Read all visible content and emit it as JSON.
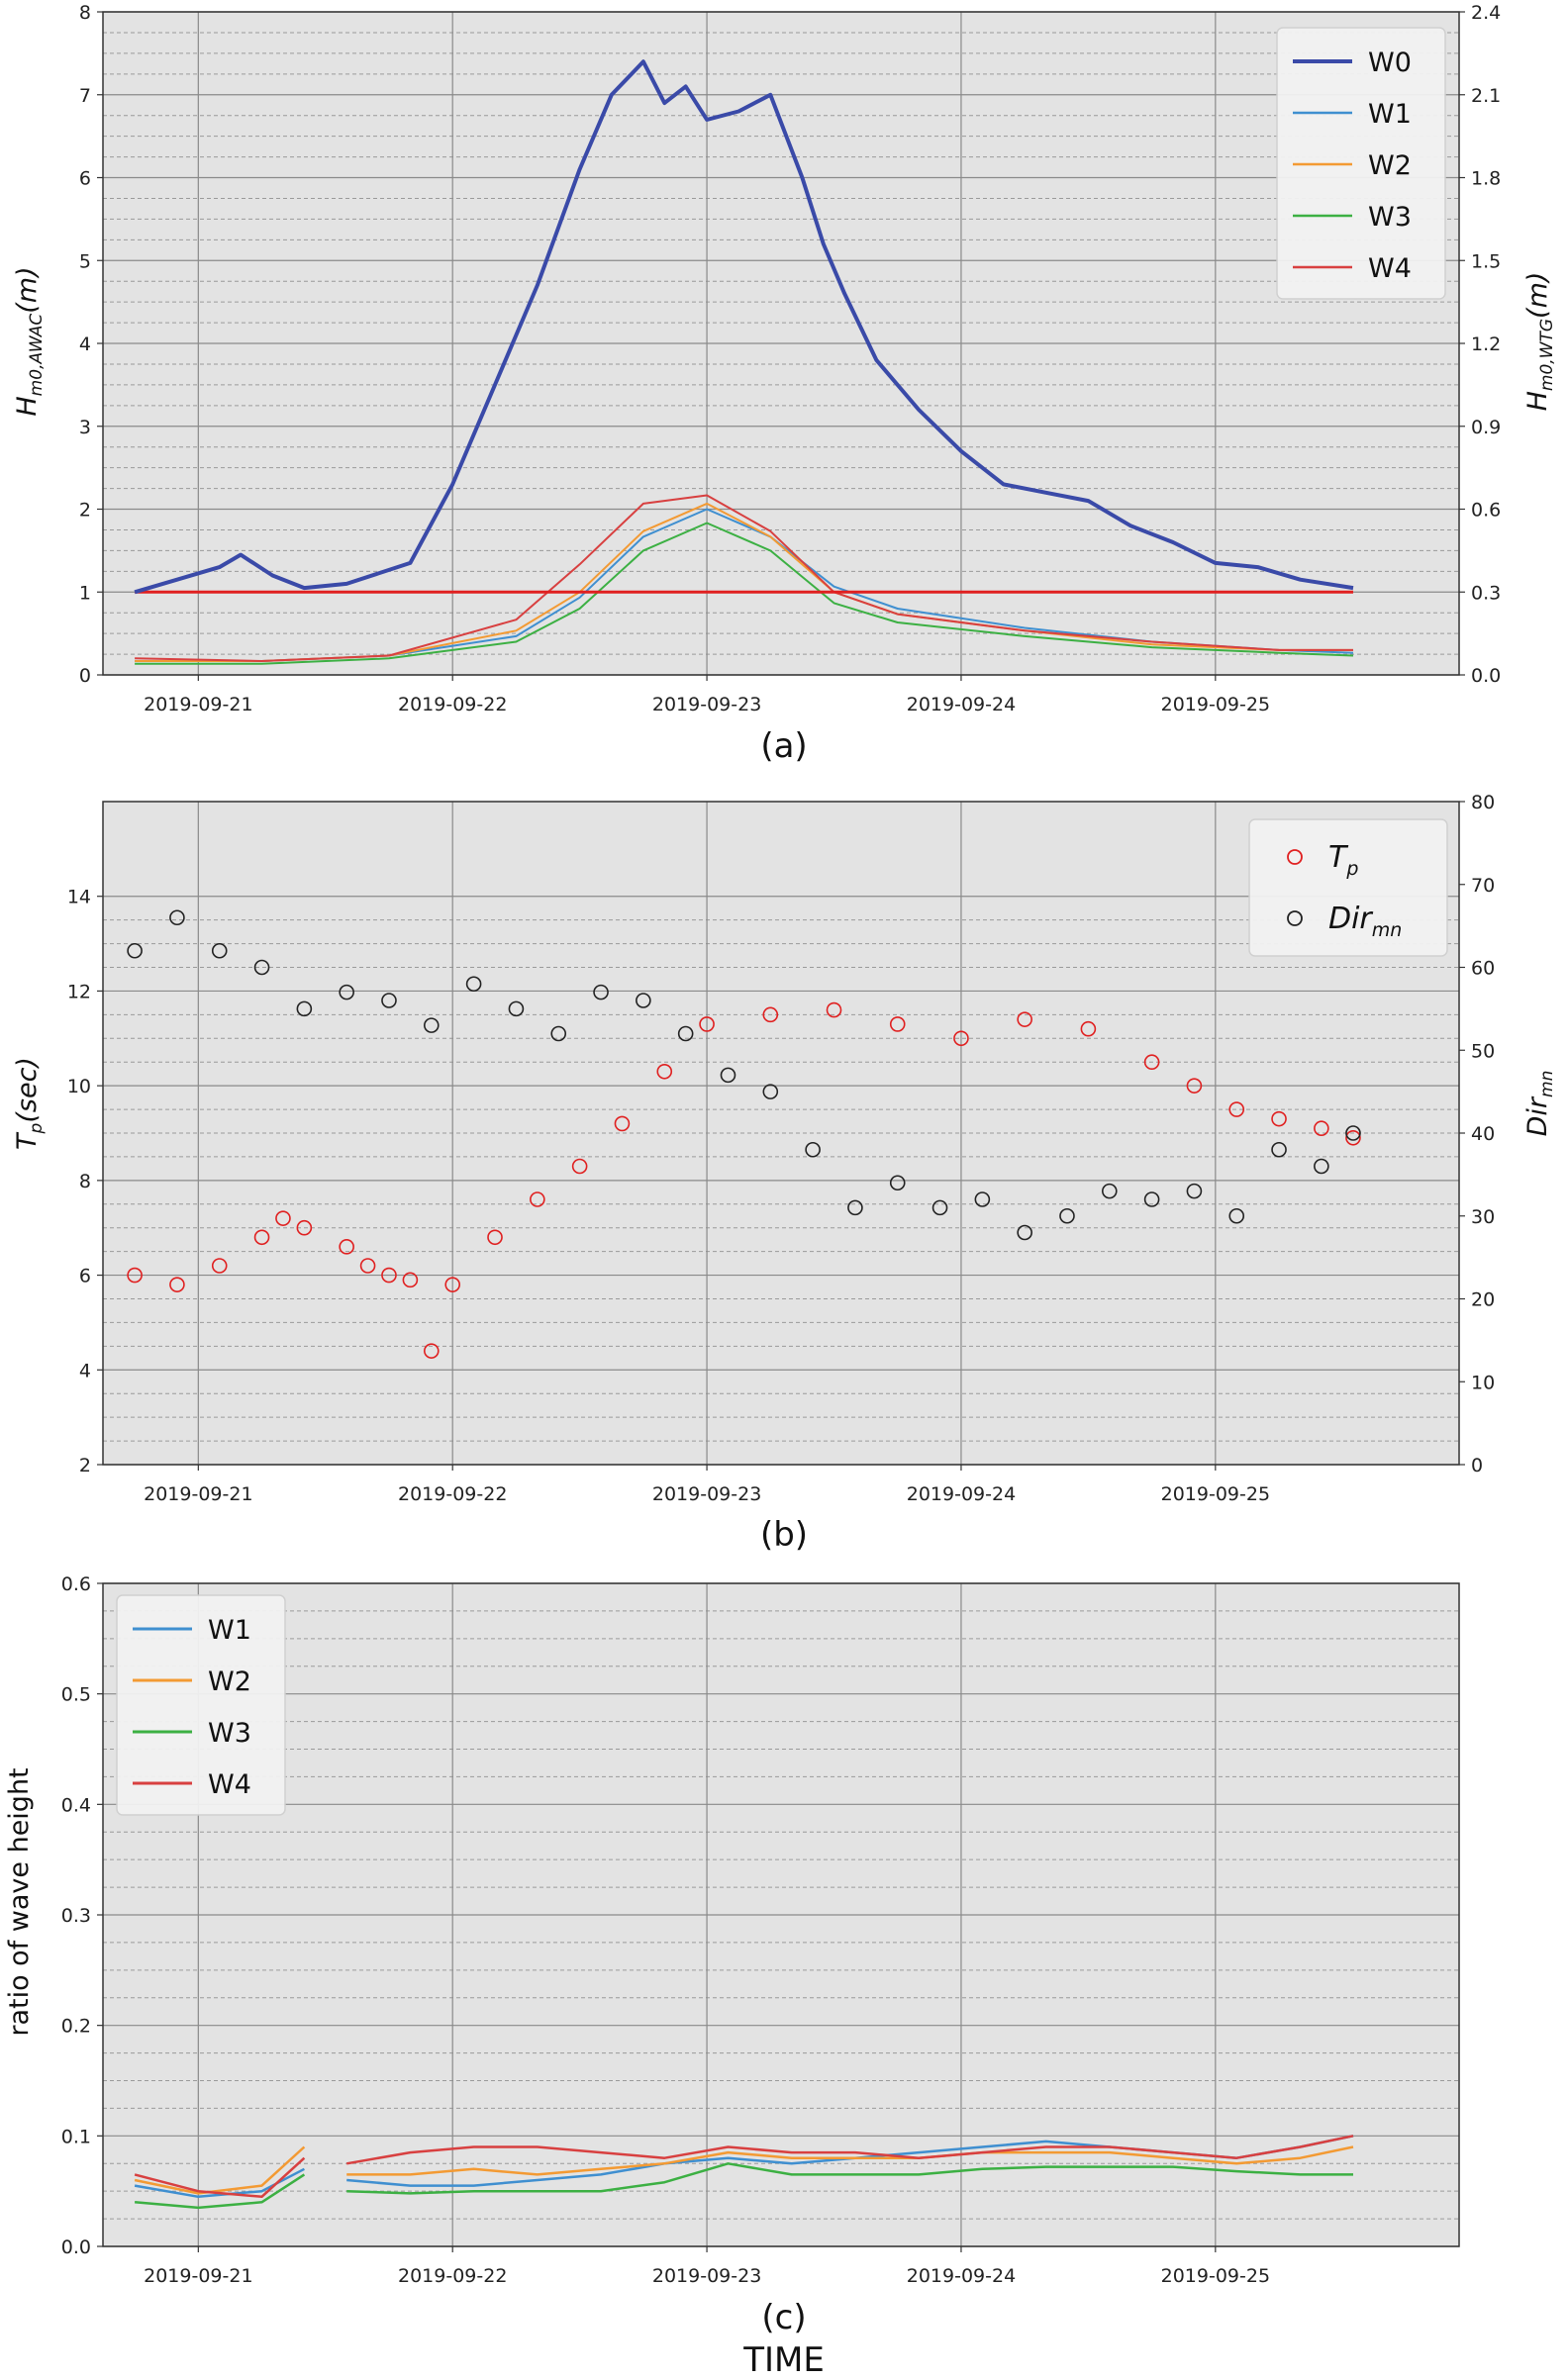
{
  "chart_data": [
    {
      "panel": "(a)",
      "type": "line",
      "caption": "(a)",
      "ylabel_left": "H_m0,AWAC(m)",
      "ylabel_right": "H_m0,WTG(m)",
      "ylim_left": [
        0,
        8
      ],
      "ylim_right": [
        0,
        2.4
      ],
      "yticks_left": [
        "0",
        "1",
        "2",
        "3",
        "4",
        "5",
        "6",
        "7",
        "8"
      ],
      "yticks_right": [
        "0.0",
        "0.3",
        "0.6",
        "0.9",
        "1.2",
        "1.5",
        "1.8",
        "2.1",
        "2.4"
      ],
      "xlim": [
        "2019-09-20 15:00",
        "2019-09-25 23:00"
      ],
      "xticks": [
        "2019-09-21",
        "2019-09-22",
        "2019-09-23",
        "2019-09-24",
        "2019-09-25"
      ],
      "grid": true,
      "legend_position": "top-right",
      "reference_line": {
        "y": 1.0,
        "color": "#e02020"
      },
      "series": [
        {
          "name": "W0",
          "axis": "left",
          "color": "#3a4aa8",
          "width": 4,
          "x": [
            "2019-09-20 18:00",
            "2019-09-20 22:00",
            "2019-09-21 02:00",
            "2019-09-21 04:00",
            "2019-09-21 07:00",
            "2019-09-21 10:00",
            "2019-09-21 14:00",
            "2019-09-21 20:00",
            "2019-09-22 00:00",
            "2019-09-22 04:00",
            "2019-09-22 08:00",
            "2019-09-22 12:00",
            "2019-09-22 15:00",
            "2019-09-22 18:00",
            "2019-09-22 20:00",
            "2019-09-22 22:00",
            "2019-09-23 00:00",
            "2019-09-23 03:00",
            "2019-09-23 06:00",
            "2019-09-23 09:00",
            "2019-09-23 11:00",
            "2019-09-23 13:00",
            "2019-09-23 16:00",
            "2019-09-23 20:00",
            "2019-09-24 00:00",
            "2019-09-24 04:00",
            "2019-09-24 08:00",
            "2019-09-24 12:00",
            "2019-09-24 16:00",
            "2019-09-24 20:00",
            "2019-09-25 00:00",
            "2019-09-25 04:00",
            "2019-09-25 08:00",
            "2019-09-25 13:00"
          ],
          "y": [
            1.0,
            1.15,
            1.3,
            1.45,
            1.2,
            1.05,
            1.1,
            1.35,
            2.3,
            3.5,
            4.7,
            6.1,
            7.0,
            7.4,
            6.9,
            7.1,
            6.7,
            6.8,
            7.0,
            6.0,
            5.2,
            4.6,
            3.8,
            3.2,
            2.7,
            2.3,
            2.2,
            2.1,
            1.8,
            1.6,
            1.35,
            1.3,
            1.15,
            1.05
          ]
        },
        {
          "name": "W1",
          "axis": "right",
          "color": "#3f8fd0",
          "width": 2,
          "x": [
            "2019-09-20 18:00",
            "2019-09-21 06:00",
            "2019-09-21 18:00",
            "2019-09-22 06:00",
            "2019-09-22 12:00",
            "2019-09-22 18:00",
            "2019-09-23 00:00",
            "2019-09-23 06:00",
            "2019-09-23 12:00",
            "2019-09-23 18:00",
            "2019-09-24 06:00",
            "2019-09-24 18:00",
            "2019-09-25 06:00",
            "2019-09-25 13:00"
          ],
          "y": [
            0.05,
            0.05,
            0.07,
            0.14,
            0.28,
            0.5,
            0.6,
            0.5,
            0.32,
            0.24,
            0.17,
            0.12,
            0.09,
            0.08
          ]
        },
        {
          "name": "W2",
          "axis": "right",
          "color": "#f39a33",
          "width": 2,
          "x": [
            "2019-09-20 18:00",
            "2019-09-21 06:00",
            "2019-09-21 18:00",
            "2019-09-22 06:00",
            "2019-09-22 12:00",
            "2019-09-22 18:00",
            "2019-09-23 00:00",
            "2019-09-23 06:00",
            "2019-09-23 12:00",
            "2019-09-23 18:00",
            "2019-09-24 06:00",
            "2019-09-24 18:00",
            "2019-09-25 06:00",
            "2019-09-25 13:00"
          ],
          "y": [
            0.05,
            0.05,
            0.07,
            0.16,
            0.3,
            0.52,
            0.62,
            0.5,
            0.3,
            0.22,
            0.16,
            0.11,
            0.09,
            0.09
          ]
        },
        {
          "name": "W3",
          "axis": "right",
          "color": "#3cb043",
          "width": 2,
          "x": [
            "2019-09-20 18:00",
            "2019-09-21 06:00",
            "2019-09-21 18:00",
            "2019-09-22 06:00",
            "2019-09-22 12:00",
            "2019-09-22 18:00",
            "2019-09-23 00:00",
            "2019-09-23 06:00",
            "2019-09-23 12:00",
            "2019-09-23 18:00",
            "2019-09-24 06:00",
            "2019-09-24 18:00",
            "2019-09-25 06:00",
            "2019-09-25 13:00"
          ],
          "y": [
            0.04,
            0.04,
            0.06,
            0.12,
            0.24,
            0.45,
            0.55,
            0.45,
            0.26,
            0.19,
            0.14,
            0.1,
            0.08,
            0.07
          ]
        },
        {
          "name": "W4",
          "axis": "right",
          "color": "#d84040",
          "width": 2,
          "x": [
            "2019-09-20 18:00",
            "2019-09-21 06:00",
            "2019-09-21 18:00",
            "2019-09-22 06:00",
            "2019-09-22 12:00",
            "2019-09-22 18:00",
            "2019-09-23 00:00",
            "2019-09-23 06:00",
            "2019-09-23 12:00",
            "2019-09-23 18:00",
            "2019-09-24 06:00",
            "2019-09-24 18:00",
            "2019-09-25 06:00",
            "2019-09-25 13:00"
          ],
          "y": [
            0.06,
            0.05,
            0.07,
            0.2,
            0.4,
            0.62,
            0.65,
            0.52,
            0.3,
            0.22,
            0.16,
            0.12,
            0.09,
            0.09
          ]
        }
      ]
    },
    {
      "panel": "(b)",
      "type": "scatter",
      "caption": "(b)",
      "ylabel_left": "T_p(sec)",
      "ylabel_right": "Dir_mn",
      "ylim_left": [
        2,
        16
      ],
      "ylim_right": [
        0,
        80
      ],
      "yticks_left": [
        "2",
        "4",
        "6",
        "8",
        "10",
        "12",
        "14"
      ],
      "yticks_right": [
        "0",
        "10",
        "20",
        "30",
        "40",
        "50",
        "60",
        "70",
        "80"
      ],
      "xlim": [
        "2019-09-20 15:00",
        "2019-09-25 23:00"
      ],
      "xticks": [
        "2019-09-21",
        "2019-09-22",
        "2019-09-23",
        "2019-09-24",
        "2019-09-25"
      ],
      "grid": true,
      "legend_position": "top-right",
      "series": [
        {
          "name": "T_p",
          "axis": "left",
          "color": "#e02020",
          "x": [
            "2019-09-20 18:00",
            "2019-09-20 22:00",
            "2019-09-21 02:00",
            "2019-09-21 06:00",
            "2019-09-21 08:00",
            "2019-09-21 10:00",
            "2019-09-21 14:00",
            "2019-09-21 16:00",
            "2019-09-21 18:00",
            "2019-09-21 20:00",
            "2019-09-21 22:00",
            "2019-09-22 00:00",
            "2019-09-22 04:00",
            "2019-09-22 08:00",
            "2019-09-22 12:00",
            "2019-09-22 16:00",
            "2019-09-22 20:00",
            "2019-09-23 00:00",
            "2019-09-23 06:00",
            "2019-09-23 12:00",
            "2019-09-23 18:00",
            "2019-09-24 00:00",
            "2019-09-24 06:00",
            "2019-09-24 12:00",
            "2019-09-24 18:00",
            "2019-09-24 22:00",
            "2019-09-25 02:00",
            "2019-09-25 06:00",
            "2019-09-25 10:00",
            "2019-09-25 13:00"
          ],
          "y": [
            6.0,
            5.8,
            6.2,
            6.8,
            7.2,
            7.0,
            6.6,
            6.2,
            6.0,
            5.9,
            4.4,
            5.8,
            6.8,
            7.6,
            8.3,
            9.2,
            10.3,
            11.3,
            11.5,
            11.6,
            11.3,
            11.0,
            11.4,
            11.2,
            10.5,
            10.0,
            9.5,
            9.3,
            9.1,
            8.9
          ]
        },
        {
          "name": "Dir_mn",
          "axis": "right",
          "color": "#222222",
          "x": [
            "2019-09-20 18:00",
            "2019-09-20 22:00",
            "2019-09-21 02:00",
            "2019-09-21 06:00",
            "2019-09-21 10:00",
            "2019-09-21 14:00",
            "2019-09-21 18:00",
            "2019-09-21 22:00",
            "2019-09-22 02:00",
            "2019-09-22 06:00",
            "2019-09-22 10:00",
            "2019-09-22 14:00",
            "2019-09-22 18:00",
            "2019-09-22 22:00",
            "2019-09-23 02:00",
            "2019-09-23 06:00",
            "2019-09-23 10:00",
            "2019-09-23 14:00",
            "2019-09-23 18:00",
            "2019-09-23 22:00",
            "2019-09-24 02:00",
            "2019-09-24 06:00",
            "2019-09-24 10:00",
            "2019-09-24 14:00",
            "2019-09-24 18:00",
            "2019-09-24 22:00",
            "2019-09-25 02:00",
            "2019-09-25 06:00",
            "2019-09-25 10:00",
            "2019-09-25 13:00"
          ],
          "y": [
            62,
            66,
            62,
            60,
            55,
            57,
            56,
            53,
            58,
            55,
            52,
            57,
            56,
            52,
            47,
            45,
            38,
            31,
            34,
            31,
            32,
            28,
            30,
            33,
            32,
            33,
            30,
            38,
            36,
            40
          ]
        }
      ]
    },
    {
      "panel": "(c)",
      "type": "line",
      "caption": "(c)",
      "xlabel": "TIME",
      "ylabel": "ratio of wave height",
      "ylim": [
        0,
        0.6
      ],
      "yticks": [
        "0.0",
        "0.1",
        "0.2",
        "0.3",
        "0.4",
        "0.5",
        "0.6"
      ],
      "xlim": [
        "2019-09-20 15:00",
        "2019-09-25 23:00"
      ],
      "xticks": [
        "2019-09-21",
        "2019-09-22",
        "2019-09-23",
        "2019-09-24",
        "2019-09-25"
      ],
      "grid": true,
      "legend_position": "top-left",
      "series": [
        {
          "name": "W1",
          "color": "#3f8fd0",
          "segments": [
            {
              "x": [
                "2019-09-20 18:00",
                "2019-09-21 00:00",
                "2019-09-21 06:00",
                "2019-09-21 10:00"
              ],
              "y": [
                0.055,
                0.045,
                0.05,
                0.07
              ]
            },
            {
              "x": [
                "2019-09-21 14:00",
                "2019-09-21 20:00",
                "2019-09-22 02:00",
                "2019-09-22 08:00",
                "2019-09-22 14:00",
                "2019-09-22 20:00",
                "2019-09-23 02:00",
                "2019-09-23 08:00",
                "2019-09-23 14:00",
                "2019-09-23 20:00",
                "2019-09-24 02:00",
                "2019-09-24 08:00",
                "2019-09-24 14:00",
                "2019-09-24 20:00",
                "2019-09-25 02:00",
                "2019-09-25 08:00",
                "2019-09-25 13:00"
              ],
              "y": [
                0.06,
                0.055,
                0.055,
                0.06,
                0.065,
                0.075,
                0.08,
                0.075,
                0.08,
                0.085,
                0.09,
                0.095,
                0.09,
                0.085,
                0.08,
                0.09,
                0.1
              ]
            }
          ]
        },
        {
          "name": "W2",
          "color": "#f39a33",
          "segments": [
            {
              "x": [
                "2019-09-20 18:00",
                "2019-09-21 00:00",
                "2019-09-21 06:00",
                "2019-09-21 10:00"
              ],
              "y": [
                0.06,
                0.048,
                0.055,
                0.09
              ]
            },
            {
              "x": [
                "2019-09-21 14:00",
                "2019-09-21 20:00",
                "2019-09-22 02:00",
                "2019-09-22 08:00",
                "2019-09-22 14:00",
                "2019-09-22 20:00",
                "2019-09-23 02:00",
                "2019-09-23 08:00",
                "2019-09-23 14:00",
                "2019-09-23 20:00",
                "2019-09-24 02:00",
                "2019-09-24 08:00",
                "2019-09-24 14:00",
                "2019-09-24 20:00",
                "2019-09-25 02:00",
                "2019-09-25 08:00",
                "2019-09-25 13:00"
              ],
              "y": [
                0.065,
                0.065,
                0.07,
                0.065,
                0.07,
                0.075,
                0.085,
                0.08,
                0.08,
                0.08,
                0.085,
                0.085,
                0.085,
                0.08,
                0.075,
                0.08,
                0.09
              ]
            }
          ]
        },
        {
          "name": "W3",
          "color": "#3cb043",
          "segments": [
            {
              "x": [
                "2019-09-20 18:00",
                "2019-09-21 00:00",
                "2019-09-21 06:00",
                "2019-09-21 10:00"
              ],
              "y": [
                0.04,
                0.035,
                0.04,
                0.065
              ]
            },
            {
              "x": [
                "2019-09-21 14:00",
                "2019-09-21 20:00",
                "2019-09-22 02:00",
                "2019-09-22 08:00",
                "2019-09-22 14:00",
                "2019-09-22 20:00",
                "2019-09-23 02:00",
                "2019-09-23 08:00",
                "2019-09-23 14:00",
                "2019-09-23 20:00",
                "2019-09-24 02:00",
                "2019-09-24 08:00",
                "2019-09-24 14:00",
                "2019-09-24 20:00",
                "2019-09-25 02:00",
                "2019-09-25 08:00",
                "2019-09-25 13:00"
              ],
              "y": [
                0.05,
                0.048,
                0.05,
                0.05,
                0.05,
                0.058,
                0.075,
                0.065,
                0.065,
                0.065,
                0.07,
                0.072,
                0.072,
                0.072,
                0.068,
                0.065,
                0.065
              ]
            }
          ]
        },
        {
          "name": "W4",
          "color": "#d84040",
          "segments": [
            {
              "x": [
                "2019-09-20 18:00",
                "2019-09-21 00:00",
                "2019-09-21 06:00",
                "2019-09-21 10:00"
              ],
              "y": [
                0.065,
                0.05,
                0.045,
                0.08
              ]
            },
            {
              "x": [
                "2019-09-21 14:00",
                "2019-09-21 20:00",
                "2019-09-22 02:00",
                "2019-09-22 08:00",
                "2019-09-22 14:00",
                "2019-09-22 20:00",
                "2019-09-23 02:00",
                "2019-09-23 08:00",
                "2019-09-23 14:00",
                "2019-09-23 20:00",
                "2019-09-24 02:00",
                "2019-09-24 08:00",
                "2019-09-24 14:00",
                "2019-09-24 20:00",
                "2019-09-25 02:00",
                "2019-09-25 08:00",
                "2019-09-25 13:00"
              ],
              "y": [
                0.075,
                0.085,
                0.09,
                0.09,
                0.085,
                0.08,
                0.09,
                0.085,
                0.085,
                0.08,
                0.085,
                0.09,
                0.09,
                0.085,
                0.08,
                0.09,
                0.1
              ]
            }
          ]
        }
      ]
    }
  ],
  "legends": {
    "a": [
      "W0",
      "W1",
      "W2",
      "W3",
      "W4"
    ],
    "b": [
      {
        "base": "T",
        "sub": "p"
      },
      {
        "base": "Dir",
        "sub": "mn"
      }
    ],
    "c": [
      "W1",
      "W2",
      "W3",
      "W4"
    ]
  },
  "labels": {
    "a_left_base": "H",
    "a_left_sub": "m0,AWAC",
    "a_left_unit": "(m)",
    "a_right_base": "H",
    "a_right_sub": "m0,WTG",
    "a_right_unit": "(m)",
    "b_left_base": "T",
    "b_left_sub": "p",
    "b_left_unit": "(sec)",
    "b_right_base": "Dir",
    "b_right_sub": "mn",
    "c_left": "ratio of wave height",
    "caption_a": "(a)",
    "caption_b": "(b)",
    "caption_c": "(c)",
    "xlabel_c": "TIME"
  }
}
